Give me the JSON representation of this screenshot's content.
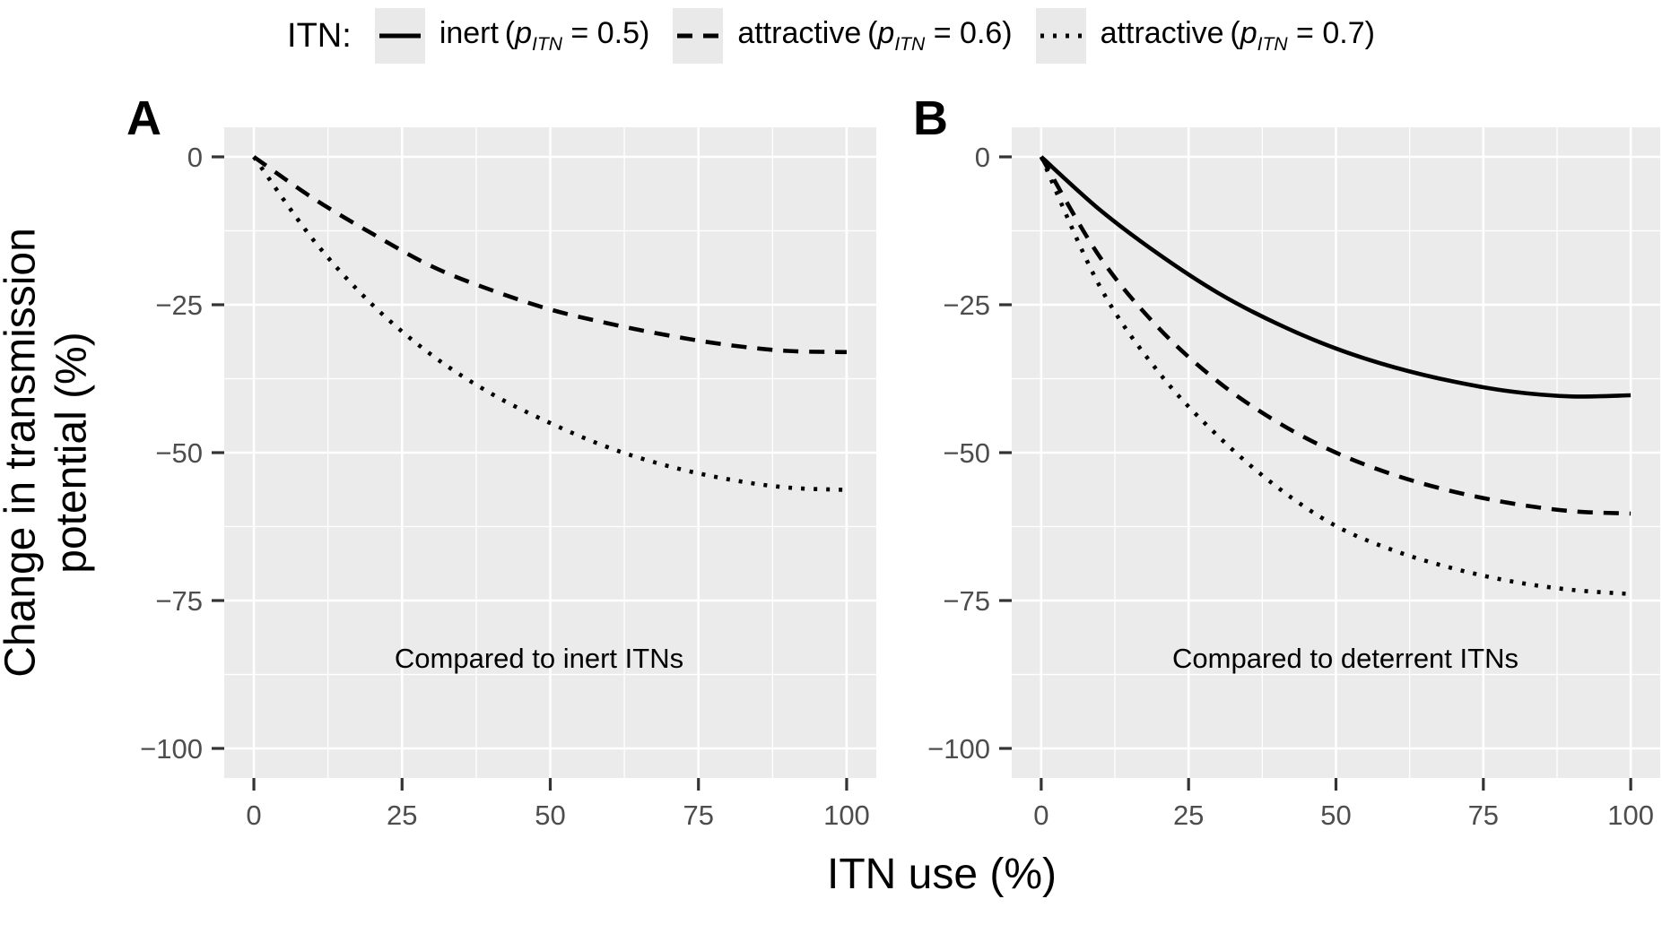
{
  "figure": {
    "panel_bg": "#ebebeb",
    "grid_color": "#ffffff",
    "axis_text_color": "#4d4d4d",
    "tick_color": "#333333",
    "curve_color": "#000000",
    "legend_key_bg": "#e9e9e9"
  },
  "legend": {
    "title": "ITN:",
    "entries": [
      {
        "style": "solid",
        "name": "inert",
        "param": "p",
        "param_sub": "ITN",
        "value": "0.5"
      },
      {
        "style": "dashed",
        "name": "attractive",
        "param": "p",
        "param_sub": "ITN",
        "value": "0.6"
      },
      {
        "style": "dotted",
        "name": "attractive",
        "param": "p",
        "param_sub": "ITN",
        "value": "0.7"
      }
    ]
  },
  "axes": {
    "x_label": "ITN use (%)",
    "y_label_line1": "Change in transmission",
    "y_label_line2": "potential (%)",
    "x_ticks": [
      {
        "value": 0,
        "label": "0"
      },
      {
        "value": 25,
        "label": "25"
      },
      {
        "value": 50,
        "label": "50"
      },
      {
        "value": 75,
        "label": "75"
      },
      {
        "value": 100,
        "label": "100"
      }
    ],
    "y_ticks": [
      {
        "value": 0,
        "label": "0"
      },
      {
        "value": -25,
        "label": "−25"
      },
      {
        "value": -50,
        "label": "−50"
      },
      {
        "value": -75,
        "label": "−75"
      },
      {
        "value": -100,
        "label": "−100"
      }
    ],
    "x_minor": [
      12.5,
      37.5,
      62.5,
      87.5
    ],
    "y_minor": [
      -12.5,
      -37.5,
      -62.5,
      -87.5
    ],
    "xlim": [
      0,
      100
    ],
    "ylim": [
      -100,
      0
    ]
  },
  "panels": [
    {
      "label": "A",
      "annotation": "Compared to inert ITNs"
    },
    {
      "label": "B",
      "annotation": "Compared to deterrent ITNs"
    }
  ],
  "chart_data": [
    {
      "type": "line",
      "panel": "A",
      "annotation": "Compared to inert ITNs",
      "title": "",
      "xlabel": "ITN use (%)",
      "ylabel": "Change in transmission potential (%)",
      "xlim": [
        0,
        100
      ],
      "ylim": [
        -100,
        0
      ],
      "grid": true,
      "legend_position": "top",
      "x": [
        0,
        10,
        20,
        30,
        40,
        50,
        60,
        70,
        80,
        90,
        100
      ],
      "series": [
        {
          "name": "attractive (pITN = 0.6)",
          "linetype": "dashed",
          "values": [
            0,
            -7,
            -13,
            -18.5,
            -22.5,
            -25.8,
            -28.2,
            -30.2,
            -31.8,
            -32.8,
            -33
          ]
        },
        {
          "name": "attractive (pITN = 0.7)",
          "linetype": "dotted",
          "values": [
            0,
            -14,
            -25,
            -33.5,
            -40,
            -45,
            -49.2,
            -52.3,
            -54.5,
            -55.9,
            -56.3
          ]
        }
      ]
    },
    {
      "type": "line",
      "panel": "B",
      "annotation": "Compared to deterrent ITNs",
      "title": "",
      "xlabel": "ITN use (%)",
      "ylabel": "Change in transmission potential (%)",
      "xlim": [
        0,
        100
      ],
      "ylim": [
        -100,
        0
      ],
      "grid": true,
      "legend_position": "top",
      "x": [
        0,
        10,
        20,
        30,
        40,
        50,
        60,
        70,
        80,
        90,
        100
      ],
      "series": [
        {
          "name": "inert (pITN = 0.5)",
          "linetype": "solid",
          "values": [
            0,
            -9,
            -16.5,
            -23,
            -28.2,
            -32.4,
            -35.6,
            -38,
            -39.7,
            -40.5,
            -40.3
          ]
        },
        {
          "name": "attractive (pITN = 0.6)",
          "linetype": "dashed",
          "values": [
            0,
            -17,
            -29,
            -38,
            -44.8,
            -50,
            -53.8,
            -56.6,
            -58.6,
            -59.9,
            -60.3
          ]
        },
        {
          "name": "attractive (pITN = 0.7)",
          "linetype": "dotted",
          "values": [
            0,
            -22,
            -36.5,
            -47.2,
            -55.8,
            -62.4,
            -66.6,
            -69.6,
            -71.8,
            -73.2,
            -73.9
          ]
        }
      ]
    }
  ]
}
